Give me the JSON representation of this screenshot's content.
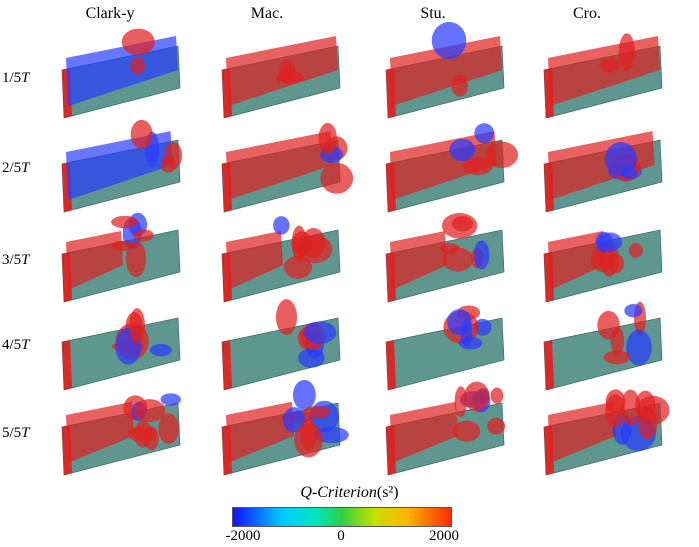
{
  "columns": [
    "Clark-y",
    "Mac.",
    "Stu.",
    "Cro."
  ],
  "rows": [
    {
      "num": "1/5",
      "sym": "T"
    },
    {
      "num": "2/5",
      "sym": "T"
    },
    {
      "num": "3/5",
      "sym": "T"
    },
    {
      "num": "4/5",
      "sym": "T"
    },
    {
      "num": "5/5",
      "sym": "T"
    }
  ],
  "colorbar": {
    "title_italic": "Q-Criterion",
    "title_unit": "(s²)",
    "min_label": "-2000",
    "mid_label": "0",
    "max_label": "2000"
  },
  "colors": {
    "blade": "#5f9690",
    "vortex_red": "#e02020",
    "vortex_blue": "#2a3cff"
  }
}
